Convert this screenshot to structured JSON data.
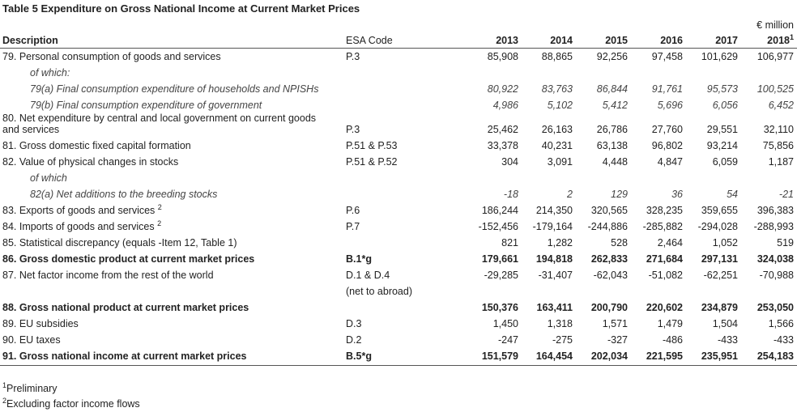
{
  "title": "Table 5 Expenditure on Gross National Income at Current Market Prices",
  "unit": "€ million",
  "header": {
    "description": "Description",
    "esa": "ESA Code",
    "years": [
      "2013",
      "2014",
      "2015",
      "2016",
      "2017",
      "2018"
    ],
    "year_notes": [
      null,
      null,
      null,
      null,
      null,
      "1"
    ]
  },
  "rows": [
    {
      "description": "79.  Personal consumption of goods and services",
      "esa": "P.3",
      "values": [
        "85,908",
        "88,865",
        "92,256",
        "97,458",
        "101,629",
        "106,977"
      ]
    },
    {
      "description": "of which:",
      "style": "italic"
    },
    {
      "description": "79(a) Final consumption expenditure of households and NPISHs",
      "style": "italic",
      "values": [
        "80,922",
        "83,763",
        "86,844",
        "91,761",
        "95,573",
        "100,525"
      ]
    },
    {
      "description": "79(b) Final consumption expenditure of government",
      "style": "italic",
      "values": [
        "4,986",
        "5,102",
        "5,412",
        "5,696",
        "6,056",
        "6,452"
      ]
    },
    {
      "description": [
        "80.  Net expenditure by central and local government on current goods",
        "and services"
      ],
      "esa": "P.3",
      "values": [
        "25,462",
        "26,163",
        "26,786",
        "27,760",
        "29,551",
        "32,110"
      ]
    },
    {
      "description": "81.  Gross domestic fixed capital formation",
      "esa": "P.51  & P.53",
      "values": [
        "33,378",
        "40,231",
        "63,138",
        "96,802",
        "93,214",
        "75,856"
      ]
    },
    {
      "description": "82.  Value of physical changes in stocks",
      "esa": "P.51  & P.52",
      "values": [
        "304",
        "3,091",
        "4,448",
        "4,847",
        "6,059",
        "1,187"
      ]
    },
    {
      "description": "of which",
      "style": "italic"
    },
    {
      "description": "82(a) Net additions to the breeding stocks",
      "style": "italic",
      "values": [
        "-18",
        "2",
        "129",
        "36",
        "54",
        "-21"
      ]
    },
    {
      "description": "83.  Exports of goods and services",
      "note": "2",
      "esa": "P.6",
      "values": [
        "186,244",
        "214,350",
        "320,565",
        "328,235",
        "359,655",
        "396,383"
      ]
    },
    {
      "description": "84.  Imports of goods and services",
      "note": "2",
      "esa": "P.7",
      "values": [
        "-152,456",
        "-179,164",
        "-244,886",
        "-285,882",
        "-294,028",
        "-288,993"
      ]
    },
    {
      "description": "85.  Statistical discrepancy (equals -Item 12, Table 1)",
      "values": [
        "821",
        "1,282",
        "528",
        "2,464",
        "1,052",
        "519"
      ]
    },
    {
      "description": "86.  Gross domestic product at current market prices",
      "style": "bold",
      "esa": "B.1*g",
      "values": [
        "179,661",
        "194,818",
        "262,833",
        "271,684",
        "297,131",
        "324,038"
      ]
    },
    {
      "description": "87.  Net factor income from the rest of the world",
      "esa": [
        "D.1 & D.4",
        "(net to abroad)"
      ],
      "values": [
        "-29,285",
        "-31,407",
        "-62,043",
        "-51,082",
        "-62,251",
        "-70,988"
      ]
    },
    {
      "description": "88.  Gross national product at current market prices",
      "style": "bold",
      "values": [
        "150,376",
        "163,411",
        "200,790",
        "220,602",
        "234,879",
        "253,050"
      ]
    },
    {
      "description": "89.  EU subsidies",
      "esa": "D.3",
      "values": [
        "1,450",
        "1,318",
        "1,571",
        "1,479",
        "1,504",
        "1,566"
      ]
    },
    {
      "description": "90.  EU taxes",
      "esa": "D.2",
      "values": [
        "-247",
        "-275",
        "-327",
        "-486",
        "-433",
        "-433"
      ]
    },
    {
      "description": "91.  Gross national income at current market prices",
      "style": "bold",
      "esa": "B.5*g",
      "values": [
        "151,579",
        "164,454",
        "202,034",
        "221,595",
        "235,951",
        "254,183"
      ]
    }
  ],
  "footnotes": [
    {
      "mark": "1",
      "text": "Preliminary"
    },
    {
      "mark": "2",
      "text": "Excluding factor income flows"
    }
  ]
}
